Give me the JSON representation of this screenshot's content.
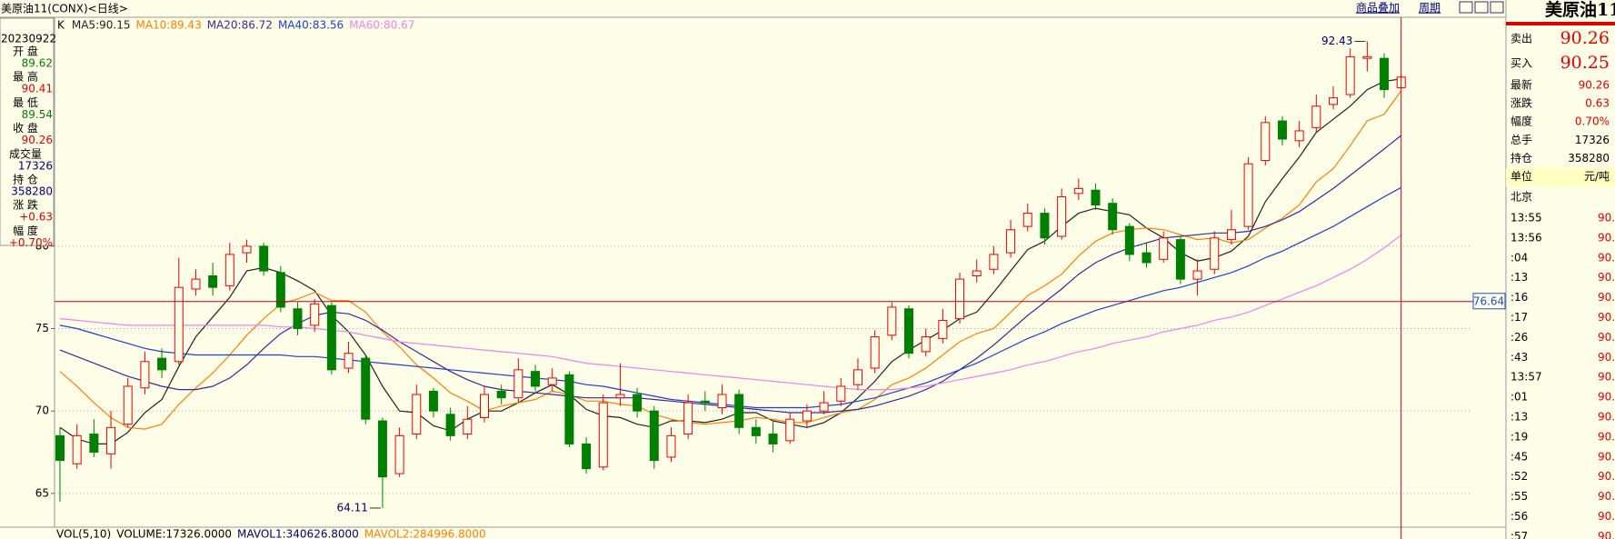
{
  "header": {
    "title": "美原油11(CONX)<日线>",
    "buttons": [
      "商品叠加",
      "周期"
    ]
  },
  "info_panel": {
    "date": "20230922",
    "rows": [
      {
        "label": "开 盘",
        "value": "89.62",
        "color": "#008000"
      },
      {
        "label": "最 高",
        "value": "90.41",
        "color": "#e00000"
      },
      {
        "label": "最 低",
        "value": "89.54",
        "color": "#008000"
      },
      {
        "label": "收 盘",
        "value": "90.26",
        "color": "#e00000"
      },
      {
        "label": "成交量",
        "value": "17326",
        "color": "#000080"
      },
      {
        "label": "持 仓",
        "value": "358280",
        "color": "#000080"
      },
      {
        "label": "涨 跌",
        "value": "+0.63",
        "color": "#e00000"
      },
      {
        "label": "幅 度",
        "value": "+0.70%",
        "color": "#e00000"
      }
    ]
  },
  "chart_data": {
    "type": "candlestick",
    "label": "K",
    "open": [
      68.5,
      66.8,
      68.6,
      67.4,
      69.2,
      71.4,
      73.2,
      73,
      77.4,
      78.2,
      77.6,
      79.6,
      80,
      78.4,
      76.2,
      75.2,
      76.4,
      72.6,
      73.2,
      69.4,
      66.2,
      68.6,
      71.2,
      69.8,
      68.6,
      69.6,
      71.2,
      70.8,
      72.4,
      71.6,
      72.2,
      68,
      66.6,
      70.8,
      71,
      70,
      67.2,
      68.6,
      70.6,
      70.2,
      71,
      69,
      68.6,
      68.2,
      69.4,
      70,
      70.6,
      71.6,
      72.6,
      74.6,
      76.2,
      73.6,
      74.4,
      75.6,
      78.2,
      78.6,
      79.6,
      81.2,
      82,
      80.6,
      83.2,
      83.4,
      82.6,
      81.2,
      79.6,
      79.2,
      80.4,
      78,
      78.6,
      80.4,
      81.2,
      85.2,
      87.6,
      86.4,
      87.2,
      88.6,
      89.2,
      91.4,
      91.4,
      89.62
    ],
    "high": [
      69,
      69.2,
      69.5,
      70,
      72,
      73.6,
      73.8,
      79.3,
      78.6,
      79,
      80.2,
      80.4,
      80.2,
      78.8,
      76.6,
      76.8,
      76.6,
      74.2,
      73.4,
      69.6,
      69,
      71.6,
      71.4,
      70.2,
      70.3,
      71.5,
      71.6,
      73.2,
      72.8,
      72.6,
      72.4,
      68.4,
      71,
      72.9,
      71.4,
      70.3,
      69,
      71,
      71.2,
      71.6,
      71.3,
      69.5,
      69.4,
      69.9,
      70.4,
      71.2,
      72,
      73.2,
      74.9,
      76.6,
      76.4,
      75,
      76.2,
      78.4,
      79.2,
      80,
      81.6,
      82.6,
      82.3,
      83.5,
      84.1,
      83.8,
      82.9,
      81.4,
      80.2,
      80.9,
      80.6,
      79.2,
      80.9,
      82.2,
      85.4,
      87.9,
      87.9,
      87.6,
      89.2,
      89.7,
      92,
      92.43,
      91.7,
      90.41
    ],
    "low": [
      64.5,
      66.5,
      67.2,
      66.5,
      69,
      71,
      72,
      72.8,
      77,
      77,
      77.3,
      79,
      78.2,
      76,
      74.6,
      74.8,
      72.2,
      72.3,
      69.2,
      64.11,
      66,
      68.3,
      69.6,
      68.2,
      68.3,
      69.3,
      70.4,
      70.5,
      71.2,
      71.2,
      67.8,
      66.2,
      66.4,
      70.3,
      69.6,
      66.5,
      66.9,
      68.3,
      70,
      69.8,
      68.6,
      68,
      67.5,
      68,
      69,
      69.8,
      70.3,
      71.3,
      72.3,
      74.3,
      73.2,
      73.3,
      74.1,
      75.3,
      77.8,
      78.3,
      79.3,
      80.9,
      80.1,
      80.4,
      82.8,
      82.2,
      80.7,
      79.1,
      78.7,
      79,
      77.7,
      77,
      78.3,
      80.1,
      81,
      84.9,
      86.1,
      86,
      86.9,
      88.3,
      89,
      90.6,
      89,
      89.54
    ],
    "close": [
      67,
      68.5,
      67.5,
      69,
      71.5,
      73,
      72.5,
      77.5,
      78,
      77.5,
      79.5,
      80,
      78.5,
      76.3,
      75,
      76.5,
      72.5,
      73.5,
      69.5,
      66,
      68.5,
      71,
      70,
      68.5,
      69.5,
      71,
      70.8,
      72.5,
      71.5,
      72,
      68,
      66.5,
      70.5,
      71,
      70,
      67,
      68.5,
      70.5,
      70.5,
      71,
      69,
      68.5,
      68,
      69.5,
      70,
      70.5,
      71.5,
      72.5,
      74.5,
      76.3,
      73.5,
      74.5,
      75.5,
      78,
      78.5,
      79.5,
      81,
      82,
      80.5,
      83,
      83.5,
      82.5,
      81,
      79.5,
      79,
      80.5,
      78,
      78.5,
      80.5,
      81,
      85,
      87.5,
      86.5,
      87,
      88.5,
      89,
      91.5,
      91.5,
      89.5,
      90.26
    ],
    "up_color": "#ee0000",
    "down_color": "#008000",
    "series": [
      {
        "name": "MA5:90.15",
        "color": "#222222",
        "values": [
          69,
          68.3,
          68,
          68,
          68.7,
          69.9,
          70.7,
          72.7,
          74.5,
          75.7,
          76.9,
          78.5,
          78.7,
          78.4,
          77.9,
          77.3,
          75.8,
          74.8,
          73.4,
          71.5,
          70,
          69.9,
          69.1,
          68.8,
          69.5,
          70,
          70,
          70.5,
          71.1,
          71.6,
          71,
          70.1,
          69.7,
          69.6,
          69.2,
          69,
          69.4,
          69.4,
          69.3,
          69.5,
          69.9,
          69.9,
          69.4,
          69.2,
          69,
          69.3,
          69.9,
          70.8,
          71.8,
          73,
          73.7,
          74.3,
          74.9,
          75.6,
          76,
          77.2,
          78.5,
          79.8,
          80.3,
          81.2,
          82,
          82.3,
          82.1,
          81.9,
          81.1,
          80.5,
          79.6,
          79.1,
          79.3,
          79.7,
          80.6,
          82.7,
          84.1,
          85.4,
          86.9,
          87.7,
          88.5,
          89.5,
          90,
          90.15
        ]
      },
      {
        "name": "MA10:89.43",
        "color": "#ff8000",
        "values": [
          72.4,
          71.5,
          70.5,
          69.6,
          69,
          68.9,
          69.2,
          70.4,
          71.4,
          72.3,
          73.4,
          74.6,
          75.6,
          76.5,
          76.8,
          77.2,
          76.7,
          76.7,
          76,
          74.8,
          73.9,
          72.8,
          72,
          71.1,
          70.6,
          70,
          70.3,
          70.5,
          70.7,
          71.2,
          71,
          70.6,
          70.6,
          70.4,
          70.3,
          69.8,
          69.5,
          69.3,
          69.2,
          69.3,
          69.4,
          69.6,
          69.5,
          69.3,
          69.3,
          69.6,
          69.9,
          70.1,
          70.7,
          71.6,
          72,
          72.6,
          73.4,
          74.2,
          74.7,
          75,
          76,
          77,
          77.6,
          78.3,
          79.4,
          80.3,
          80.8,
          81,
          81.1,
          81,
          80.7,
          80.4,
          80.5,
          80.2,
          80.4,
          81.1,
          81.7,
          82.5,
          83.9,
          84.7,
          86.1,
          87.6,
          88,
          89.43
        ]
      },
      {
        "name": "MA20:86.72",
        "color": "#3a2a9a",
        "values": [
          73.7,
          73.3,
          72.9,
          72.5,
          72.1,
          71.8,
          71.5,
          71.3,
          71.3,
          71.5,
          72,
          72.8,
          73.8,
          74.7,
          75.3,
          75.8,
          76,
          75.9,
          75.5,
          74.9,
          74.2,
          73.6,
          73,
          72.4,
          71.9,
          71.5,
          71.3,
          71.2,
          71.1,
          71,
          70.9,
          70.8,
          70.8,
          70.8,
          70.8,
          70.7,
          70.6,
          70.5,
          70.4,
          70.3,
          70.2,
          70.1,
          70,
          69.9,
          69.9,
          69.9,
          70,
          70.1,
          70.3,
          70.6,
          70.9,
          71.3,
          71.8,
          72.5,
          73.2,
          74,
          74.9,
          75.8,
          76.6,
          77.4,
          78.3,
          79,
          79.5,
          79.9,
          80.2,
          80.5,
          80.6,
          80.7,
          80.8,
          80.8,
          80.9,
          81.2,
          81.6,
          82.1,
          82.8,
          83.5,
          84.3,
          85.1,
          85.9,
          86.72
        ]
      },
      {
        "name": "MA40:83.56",
        "color": "#1f3fd0",
        "values": [
          75.2,
          75,
          74.7,
          74.4,
          74.1,
          73.8,
          73.6,
          73.5,
          73.4,
          73.4,
          73.4,
          73.4,
          73.4,
          73.4,
          73.3,
          73.3,
          73.2,
          73.1,
          73,
          72.9,
          72.8,
          72.7,
          72.6,
          72.5,
          72.4,
          72.3,
          72.2,
          72.1,
          72,
          71.9,
          71.8,
          71.6,
          71.5,
          71.3,
          71.1,
          70.9,
          70.7,
          70.6,
          70.5,
          70.4,
          70.3,
          70.2,
          70.2,
          70.2,
          70.2,
          70.3,
          70.4,
          70.6,
          70.8,
          71.1,
          71.4,
          71.7,
          72.1,
          72.5,
          72.9,
          73.4,
          73.9,
          74.4,
          74.8,
          75.3,
          75.7,
          76.1,
          76.4,
          76.7,
          77,
          77.3,
          77.5,
          77.8,
          78.1,
          78.4,
          78.8,
          79.3,
          79.7,
          80.2,
          80.7,
          81.2,
          81.8,
          82.4,
          83,
          83.56
        ]
      },
      {
        "name": "MA60:80.67",
        "color": "#ee82ee",
        "values": [
          75.6,
          75.5,
          75.4,
          75.3,
          75.2,
          75.2,
          75.2,
          75.2,
          75.2,
          75.2,
          75.2,
          75.2,
          75.2,
          75.1,
          75.1,
          75,
          74.9,
          74.8,
          74.6,
          74.4,
          74.2,
          74.1,
          74,
          73.9,
          73.8,
          73.7,
          73.6,
          73.5,
          73.4,
          73.3,
          73.1,
          72.9,
          72.8,
          72.7,
          72.6,
          72.5,
          72.4,
          72.3,
          72.2,
          72.1,
          72,
          71.9,
          71.8,
          71.7,
          71.6,
          71.5,
          71.4,
          71.3,
          71.3,
          71.3,
          71.4,
          71.5,
          71.7,
          71.9,
          72.1,
          72.3,
          72.5,
          72.8,
          73,
          73.3,
          73.6,
          73.8,
          74.1,
          74.3,
          74.5,
          74.8,
          75,
          75.2,
          75.5,
          75.7,
          76,
          76.4,
          76.8,
          77.2,
          77.6,
          78.1,
          78.6,
          79.2,
          79.9,
          80.67
        ]
      }
    ],
    "ylim": [
      62.95,
      93.89
    ],
    "yticks": [
      65,
      70,
      75,
      80
    ],
    "grid": true,
    "cursor_price": 76.64
  },
  "volume_bar": [
    {
      "text": "VOL(5,10)",
      "color": "#000000"
    },
    {
      "text": "VOLUME:17326.0000",
      "color": "#000000"
    },
    {
      "text": "MAVOL1:340626.8000",
      "color": "#000080"
    },
    {
      "text": "MAVOL2:284996.8000",
      "color": "#ff8000"
    }
  ],
  "quote_panel": {
    "title": "美原油11",
    "rows": [
      {
        "label": "卖出",
        "value": "90.26",
        "color": "#e00000"
      },
      {
        "label": "买入",
        "value": "90.25",
        "color": "#e00000"
      },
      {
        "label": "最新",
        "value": "90.26",
        "color": "#e00000"
      },
      {
        "label": "涨跌",
        "value": "0.63",
        "color": "#e00000"
      },
      {
        "label": "幅度",
        "value": "0.70%",
        "color": "#e00000"
      },
      {
        "label": "总手",
        "value": "17326",
        "color": "#000000"
      },
      {
        "label": "持仓",
        "value": "358280",
        "color": "#000000"
      },
      {
        "label": "单位",
        "value": "元/吨",
        "color": "#000000"
      }
    ],
    "location": "北京",
    "ticks": [
      {
        "time": "13:55",
        "price": "90."
      },
      {
        "time": "13:56",
        "price": "90."
      },
      {
        "time": ":04",
        "price": "90."
      },
      {
        "time": ":13",
        "price": "90."
      },
      {
        "time": ":16",
        "price": "90."
      },
      {
        "time": ":17",
        "price": "90."
      },
      {
        "time": ":26",
        "price": "90."
      },
      {
        "time": ":43",
        "price": "90."
      },
      {
        "time": "13:57",
        "price": "90."
      },
      {
        "time": ":01",
        "price": "90."
      },
      {
        "time": ":13",
        "price": "90."
      },
      {
        "time": ":19",
        "price": "90."
      },
      {
        "time": ":45",
        "price": "90."
      },
      {
        "time": ":52",
        "price": "90."
      },
      {
        "time": ":55",
        "price": "90."
      },
      {
        "time": ":56",
        "price": "90."
      },
      {
        "time": ":57",
        "price": "90."
      }
    ]
  }
}
